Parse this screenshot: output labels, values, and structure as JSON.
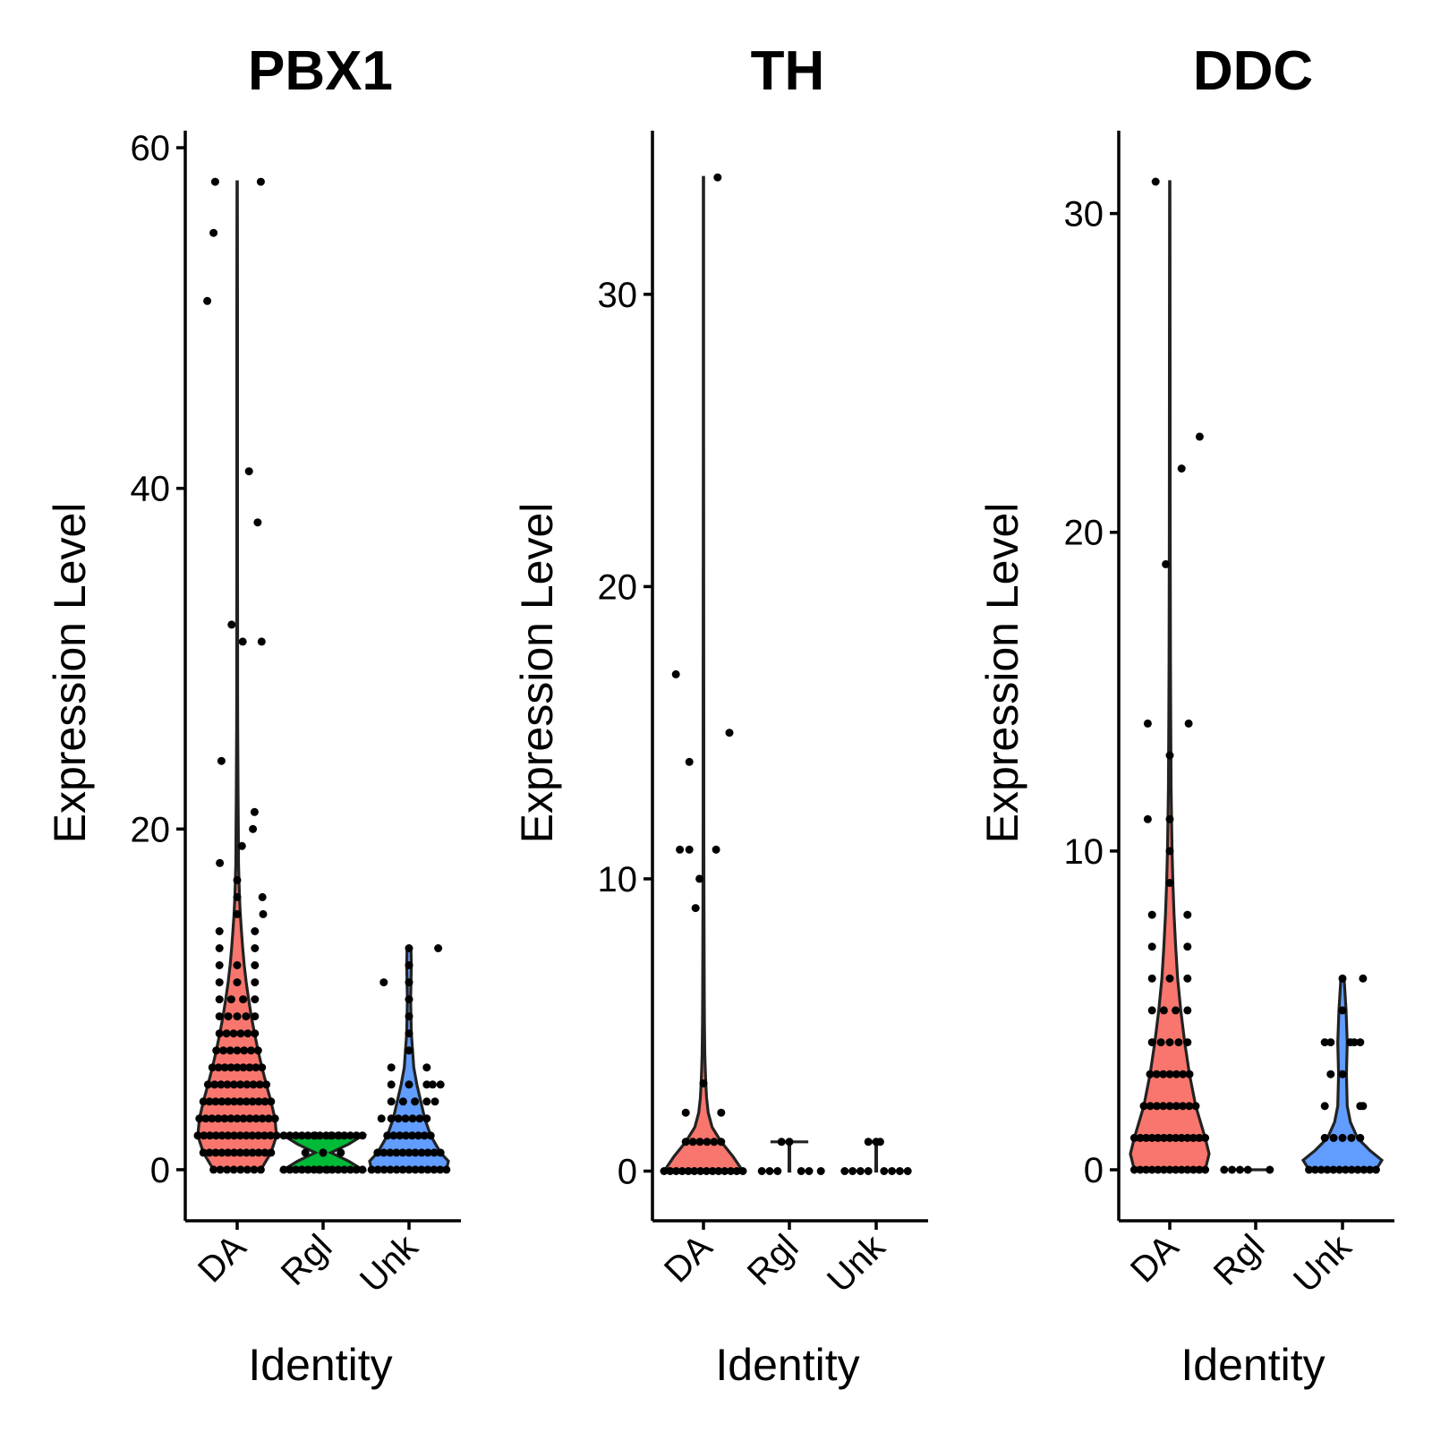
{
  "chart_data": [
    {
      "type": "violin",
      "title": "PBX1",
      "xlabel": "Identity",
      "ylabel": "Expression Level",
      "categories": [
        "DA",
        "Rgl",
        "Unk"
      ],
      "ylim": [
        -3,
        61
      ],
      "yticks": [
        0,
        20,
        40,
        60
      ],
      "colors": [
        "#F8766D",
        "#00BA38",
        "#619CFF"
      ],
      "series": [
        {
          "category": "DA",
          "max": 58,
          "shape": [
            [
              0,
              0.6
            ],
            [
              1,
              0.86
            ],
            [
              2,
              1.0
            ],
            [
              3,
              0.96
            ],
            [
              4,
              0.86
            ],
            [
              5,
              0.74
            ],
            [
              6,
              0.63
            ],
            [
              7,
              0.53
            ],
            [
              8,
              0.44
            ],
            [
              9,
              0.36
            ],
            [
              10,
              0.29
            ],
            [
              11,
              0.23
            ],
            [
              12,
              0.18
            ],
            [
              13,
              0.14
            ],
            [
              14,
              0.11
            ],
            [
              15,
              0.08
            ],
            [
              16,
              0.06
            ],
            [
              17,
              0.045
            ],
            [
              18,
              0.035
            ],
            [
              20,
              0.03
            ],
            [
              22,
              0.022
            ],
            [
              24,
              0.018
            ],
            [
              26,
              0.014
            ],
            [
              28,
              0.012
            ],
            [
              30,
              0.012
            ],
            [
              32,
              0.012
            ],
            [
              35,
              0.01
            ],
            [
              38,
              0.01
            ],
            [
              41,
              0.01
            ],
            [
              45,
              0.008
            ],
            [
              50,
              0.008
            ],
            [
              55,
              0.007
            ],
            [
              58,
              0.005
            ]
          ],
          "points": [
            [
              -0.28,
              58
            ],
            [
              -0.3,
              55
            ],
            [
              -0.38,
              51
            ],
            [
              0.3,
              58
            ],
            [
              0.15,
              41
            ],
            [
              0.26,
              38
            ],
            [
              -0.07,
              32
            ],
            [
              0.07,
              31
            ],
            [
              0.31,
              31
            ],
            [
              -0.2,
              24
            ],
            [
              0.22,
              21
            ],
            [
              0.2,
              20
            ],
            [
              0.06,
              19
            ],
            [
              -0.22,
              18
            ],
            [
              0.32,
              16
            ],
            [
              0.33,
              15
            ]
          ]
        },
        {
          "category": "Rgl",
          "max": 2,
          "shape": [
            [
              0,
              1.0
            ],
            [
              0.5,
              0.65
            ],
            [
              1,
              0.2
            ],
            [
              1.5,
              0.65
            ],
            [
              2,
              1.0
            ]
          ],
          "points": [
            [
              -0.1,
              2
            ],
            [
              0.1,
              2
            ],
            [
              0.2,
              2
            ],
            [
              -0.05,
              0
            ],
            [
              0.05,
              0
            ],
            [
              0.0,
              1
            ]
          ]
        },
        {
          "category": "Unk",
          "max": 13,
          "shape": [
            [
              0,
              0.95
            ],
            [
              0.5,
              1.0
            ],
            [
              1,
              0.8
            ],
            [
              2,
              0.55
            ],
            [
              3,
              0.4
            ],
            [
              4,
              0.3
            ],
            [
              5,
              0.2
            ],
            [
              6,
              0.12
            ],
            [
              7,
              0.09
            ],
            [
              8,
              0.06
            ],
            [
              9,
              0.05
            ],
            [
              10,
              0.04
            ],
            [
              11,
              0.05
            ],
            [
              12,
              0.06
            ],
            [
              13,
              0.05
            ]
          ],
          "points": [
            [
              -0.32,
              11
            ],
            [
              0.37,
              13
            ],
            [
              0.0,
              7
            ],
            [
              0.4,
              5
            ],
            [
              0.3,
              5
            ],
            [
              0.33,
              4
            ],
            [
              -0.35,
              3
            ]
          ]
        }
      ]
    },
    {
      "type": "violin",
      "title": "TH",
      "xlabel": "Identity",
      "ylabel": "Expression Level",
      "categories": [
        "DA",
        "Rgl",
        "Unk"
      ],
      "ylim": [
        -1.7,
        35.6
      ],
      "yticks": [
        0,
        10,
        20,
        30
      ],
      "colors": [
        "#F8766D",
        "#00BA38",
        "#619CFF"
      ],
      "series": [
        {
          "category": "DA",
          "max": 34,
          "shape": [
            [
              0,
              1.0
            ],
            [
              0.5,
              0.75
            ],
            [
              1,
              0.45
            ],
            [
              1.5,
              0.22
            ],
            [
              2,
              0.12
            ],
            [
              2.5,
              0.08
            ],
            [
              3,
              0.06
            ],
            [
              3.5,
              0.045
            ],
            [
              4,
              0.035
            ],
            [
              5,
              0.025
            ],
            [
              6,
              0.02
            ],
            [
              8,
              0.015
            ],
            [
              10,
              0.012
            ],
            [
              12,
              0.01
            ],
            [
              15,
              0.008
            ],
            [
              20,
              0.006
            ],
            [
              25,
              0.005
            ],
            [
              30,
              0.005
            ],
            [
              34,
              0.004
            ]
          ],
          "points": [
            [
              0.18,
              34
            ],
            [
              -0.35,
              17
            ],
            [
              0.33,
              15
            ],
            [
              -0.18,
              14
            ],
            [
              -0.3,
              11
            ],
            [
              -0.18,
              11
            ],
            [
              0.16,
              11
            ],
            [
              -0.05,
              10
            ],
            [
              -0.1,
              9
            ]
          ]
        },
        {
          "category": "Rgl",
          "max": 1,
          "shape": [
            [
              0,
              0.012
            ],
            [
              0.5,
              0.01
            ],
            [
              1,
              0.01
            ]
          ],
          "cap": 0.12,
          "points": [
            [
              -0.35,
              0
            ],
            [
              -0.25,
              0
            ],
            [
              -0.15,
              0
            ],
            [
              0.15,
              0
            ],
            [
              0.25,
              0
            ],
            [
              0.4,
              0
            ],
            [
              -0.1,
              1
            ],
            [
              0.0,
              1
            ]
          ]
        },
        {
          "category": "Unk",
          "max": 1,
          "shape": [
            [
              0,
              0.012
            ],
            [
              0.5,
              0.01
            ],
            [
              1,
              0.01
            ]
          ],
          "cap": 0.03,
          "points": [
            [
              -0.4,
              0
            ],
            [
              -0.3,
              0
            ],
            [
              -0.2,
              0
            ],
            [
              -0.1,
              0
            ],
            [
              0.1,
              0
            ],
            [
              0.2,
              0
            ],
            [
              0.3,
              0
            ],
            [
              0.4,
              0
            ],
            [
              -0.1,
              1
            ],
            [
              0.0,
              1
            ],
            [
              0.05,
              1
            ]
          ]
        }
      ]
    },
    {
      "type": "violin",
      "title": "DDC",
      "xlabel": "Identity",
      "ylabel": "Expression Level",
      "categories": [
        "DA",
        "Rgl",
        "Unk"
      ],
      "ylim": [
        -1.6,
        32.6
      ],
      "yticks": [
        0,
        10,
        20,
        30
      ],
      "colors": [
        "#F8766D",
        "#00BA38",
        "#619CFF"
      ],
      "series": [
        {
          "category": "DA",
          "max": 31,
          "shape": [
            [
              0,
              0.9
            ],
            [
              0.5,
              1.0
            ],
            [
              1,
              0.9
            ],
            [
              2,
              0.66
            ],
            [
              3,
              0.5
            ],
            [
              4,
              0.38
            ],
            [
              5,
              0.28
            ],
            [
              6,
              0.2
            ],
            [
              7,
              0.15
            ],
            [
              8,
              0.11
            ],
            [
              9,
              0.08
            ],
            [
              10,
              0.06
            ],
            [
              11,
              0.045
            ],
            [
              12,
              0.035
            ],
            [
              14,
              0.025
            ],
            [
              16,
              0.018
            ],
            [
              20,
              0.012
            ],
            [
              25,
              0.008
            ],
            [
              31,
              0.005
            ]
          ],
          "points": [
            [
              -0.18,
              31
            ],
            [
              0.38,
              23
            ],
            [
              0.15,
              22
            ],
            [
              -0.05,
              19
            ],
            [
              -0.28,
              14
            ],
            [
              0.24,
              14
            ],
            [
              0.0,
              13
            ],
            [
              -0.28,
              11
            ]
          ]
        },
        {
          "category": "Rgl",
          "max": 0,
          "shape": [
            [
              0,
              0.45
            ]
          ],
          "points": [
            [
              -0.4,
              0
            ],
            [
              -0.3,
              0
            ],
            [
              -0.2,
              0
            ],
            [
              -0.1,
              0
            ],
            [
              0.18,
              0
            ]
          ]
        },
        {
          "category": "Unk",
          "max": 6,
          "shape": [
            [
              0,
              0.85
            ],
            [
              0.3,
              1.0
            ],
            [
              0.6,
              0.7
            ],
            [
              1,
              0.38
            ],
            [
              1.5,
              0.2
            ],
            [
              2,
              0.12
            ],
            [
              3,
              0.1
            ],
            [
              4,
              0.12
            ],
            [
              5,
              0.09
            ],
            [
              6,
              0.04
            ]
          ],
          "points": [
            [
              0.26,
              6
            ],
            [
              -0.15,
              4
            ],
            [
              0.15,
              4
            ],
            [
              0.1,
              4
            ],
            [
              -0.15,
              3
            ],
            [
              0.26,
              2
            ]
          ]
        }
      ]
    }
  ]
}
